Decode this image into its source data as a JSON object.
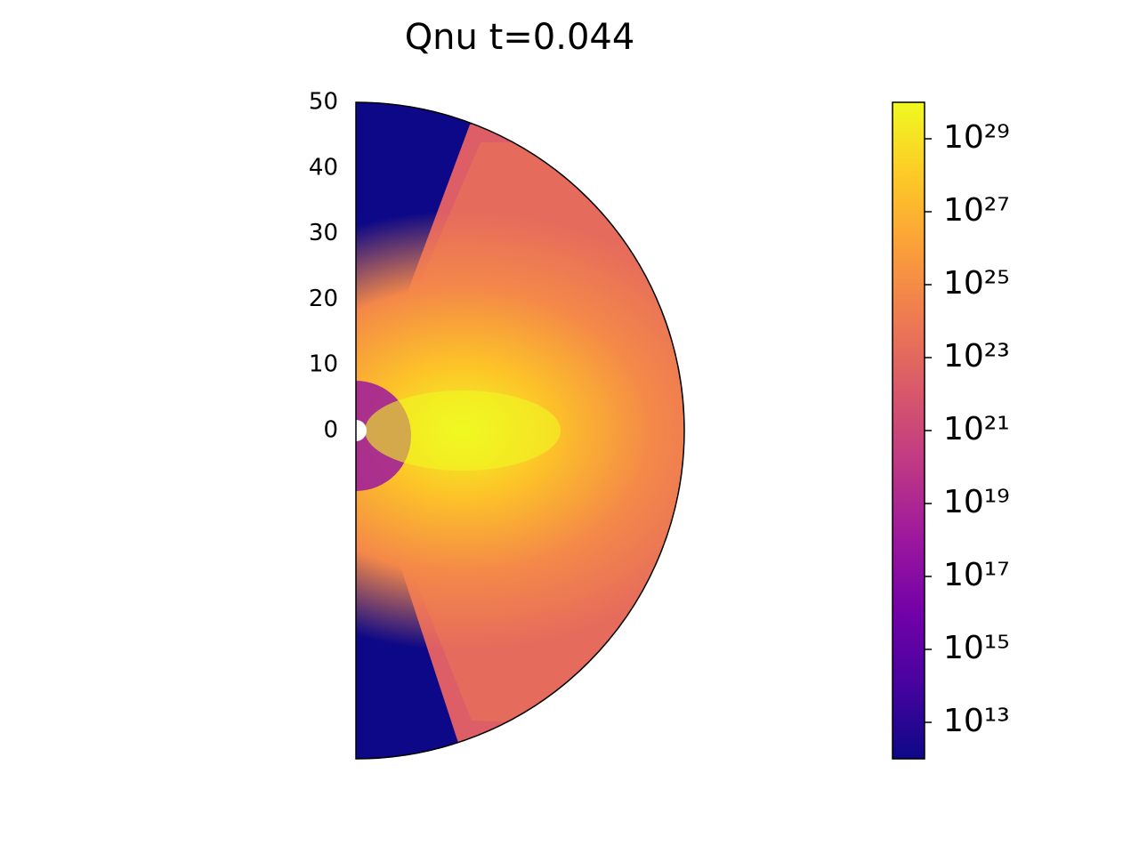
{
  "chart_data": {
    "type": "polar-heatmap",
    "title": "Qnu t=0.044",
    "ylim": [
      -50,
      50
    ],
    "yticks": [
      0,
      10,
      20,
      30,
      40,
      50
    ],
    "colorbar": {
      "scale": "log",
      "colormap": "plasma",
      "clim": [
        1000000000000.0,
        1e+30
      ],
      "ticks": [
        {
          "value": 10000000000000.0,
          "label": "10¹³"
        },
        {
          "value": 1000000000000000.0,
          "label": "10¹⁵"
        },
        {
          "value": 1e+17,
          "label": "10¹⁷"
        },
        {
          "value": 1e+19,
          "label": "10¹⁹"
        },
        {
          "value": 1e+21,
          "label": "10²¹"
        },
        {
          "value": 1e+23,
          "label": "10²³"
        },
        {
          "value": 1e+25,
          "label": "10²⁵"
        },
        {
          "value": 1e+27,
          "label": "10²⁷"
        },
        {
          "value": 1e+29,
          "label": "10²⁹"
        }
      ]
    }
  }
}
